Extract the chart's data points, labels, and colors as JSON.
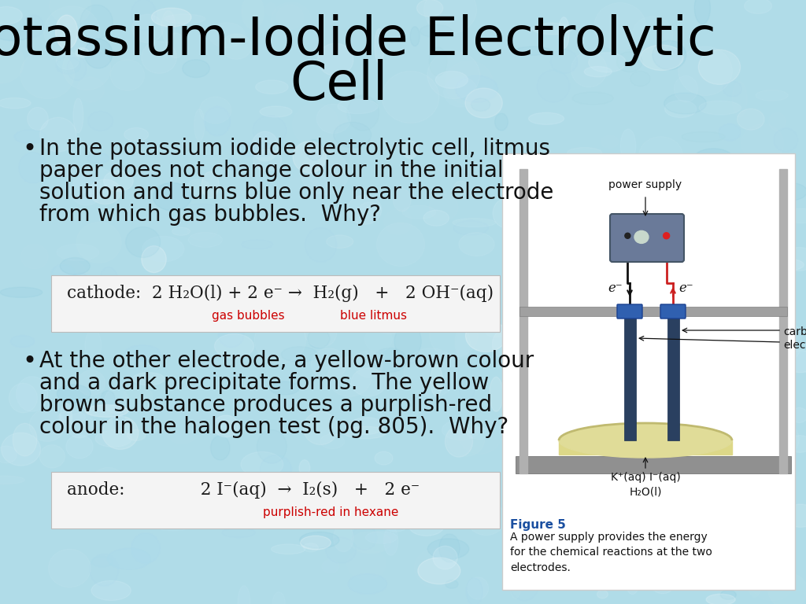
{
  "title_line1": "Potassium-Iodide Electrolytic",
  "title_line2": "Cell",
  "title_fontsize": 48,
  "bg_color": "#b0dce8",
  "bullet1_line1": "In the potassium iodide electrolytic cell, litmus",
  "bullet1_line2": "paper does not change colour in the initial",
  "bullet1_line3": "solution and turns blue only near the electrode",
  "bullet1_line4": "from which gas bubbles.  Why?",
  "cathode_eq": "cathode:  2 H₂O(l) + 2 e⁻ →  H₂(g)   +   2 OH⁻(aq)",
  "cathode_label1": "gas bubbles",
  "cathode_label2": "blue litmus",
  "bullet2_line1": "At the other electrode, a yellow-brown colour",
  "bullet2_line2": "and a dark precipitate forms.  The yellow",
  "bullet2_line3": "brown substance produces a purplish-red",
  "bullet2_line4": "colour in the halogen test (pg. 805).  Why?",
  "anode_eq": "anode:              2 I⁻(aq)  →  I₂(s)   +   2 e⁻",
  "anode_label1": "purplish-red in hexane",
  "eq_box_color": "#f4f4f4",
  "red_color": "#cc0000",
  "fig5_title": "Figure 5",
  "fig5_caption": "A power supply provides the energy\nfor the chemical reactions at the two\nelectrodes.",
  "fig5_title_color": "#1a4fa0",
  "bullet_fontsize": 20,
  "eq_fontsize": 15.5,
  "sub_fontsize": 11
}
